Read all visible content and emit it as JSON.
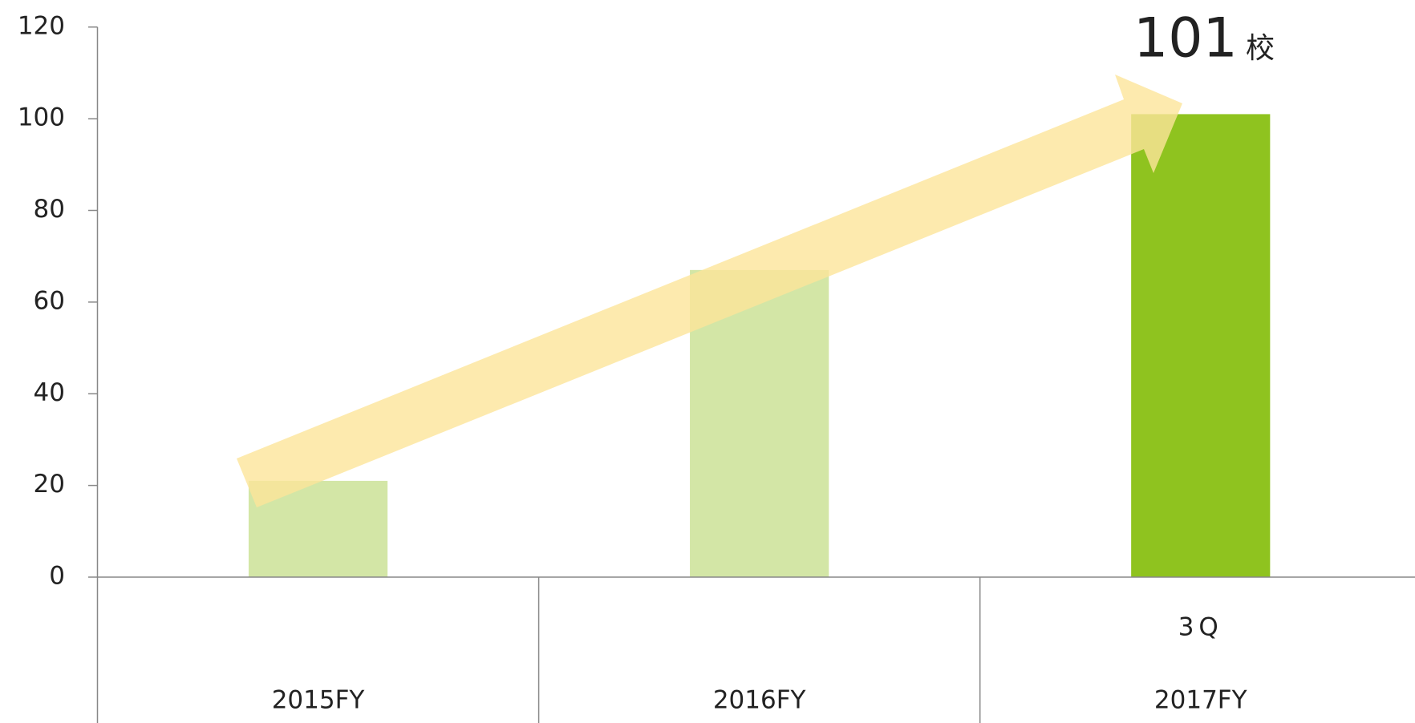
{
  "chart_data": {
    "type": "bar",
    "categories": [
      "2015FY",
      "2016FY",
      "2017FY"
    ],
    "sub_labels": [
      null,
      null,
      "3Q"
    ],
    "values": [
      21,
      67,
      101
    ],
    "colors": [
      "#d3e6a6",
      "#d3e6a6",
      "#8fc31f"
    ],
    "value_unit": "校",
    "ylim": [
      0,
      120
    ],
    "yticks": [
      0,
      20,
      40,
      60,
      80,
      100,
      120
    ],
    "grid": false
  }
}
